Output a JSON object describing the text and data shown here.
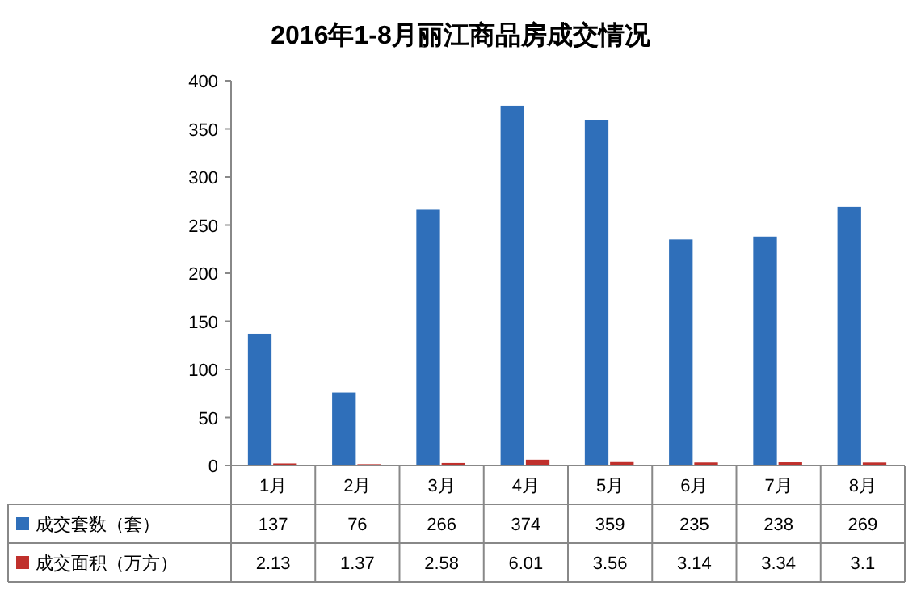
{
  "chart_data": {
    "type": "bar",
    "title": "2016年1-8月丽江商品房成交情况",
    "categories": [
      "1月",
      "2月",
      "3月",
      "4月",
      "5月",
      "6月",
      "7月",
      "8月"
    ],
    "series": [
      {
        "name": "成交套数（套）",
        "color": "#2f6fba",
        "values": [
          137,
          76,
          266,
          374,
          359,
          235,
          238,
          269
        ]
      },
      {
        "name": "成交面积（万方）",
        "color": "#c0302c",
        "values": [
          2.13,
          1.37,
          2.58,
          6.01,
          3.56,
          3.14,
          3.34,
          3.1
        ]
      }
    ],
    "ylim": [
      0,
      400
    ],
    "yticks": [
      0,
      50,
      100,
      150,
      200,
      250,
      300,
      350,
      400
    ],
    "data_labels": true,
    "legend": "bottom"
  }
}
